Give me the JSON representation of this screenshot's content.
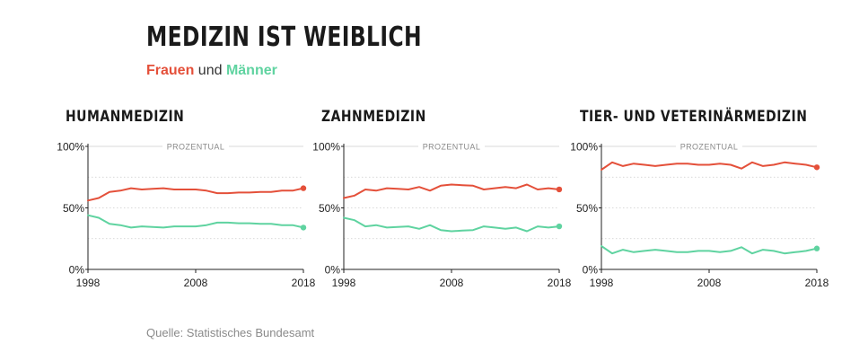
{
  "header": {
    "title": "MEDIZIN IST WEIBLICH",
    "legend_frauen": "Frauen",
    "legend_und": "und",
    "legend_maenner": "Männer"
  },
  "colors": {
    "frauen": "#e4503a",
    "maenner": "#5fd3a0",
    "grid": "#cccccc",
    "axis": "#222222"
  },
  "source": "Quelle: Statistisches Bundesamt",
  "chart_data": [
    {
      "type": "line",
      "title": "HUMANMEDIZIN",
      "axis_caption": "PROZENTUAL",
      "xlim": [
        1998,
        2018
      ],
      "ylim": [
        0,
        100
      ],
      "x_ticks": [
        "1998",
        "2008",
        "2018"
      ],
      "y_ticks": [
        "100%",
        "50%",
        "0%"
      ],
      "x": [
        1998,
        1999,
        2000,
        2001,
        2002,
        2003,
        2004,
        2005,
        2006,
        2007,
        2008,
        2009,
        2010,
        2011,
        2012,
        2013,
        2014,
        2015,
        2016,
        2017,
        2018
      ],
      "series": [
        {
          "name": "Frauen",
          "values": [
            56,
            58,
            63,
            64,
            66,
            65,
            65.5,
            66,
            65,
            65,
            65,
            64,
            62,
            62,
            62.5,
            62.5,
            63,
            63,
            64,
            64,
            66
          ]
        },
        {
          "name": "Männer",
          "values": [
            44,
            42,
            37,
            36,
            34,
            35,
            34.5,
            34,
            35,
            35,
            35,
            36,
            38,
            38,
            37.5,
            37.5,
            37,
            37,
            36,
            36,
            34
          ]
        }
      ]
    },
    {
      "type": "line",
      "title": "ZAHNMEDIZIN",
      "axis_caption": "PROZENTUAL",
      "xlim": [
        1998,
        2018
      ],
      "ylim": [
        0,
        100
      ],
      "x_ticks": [
        "1998",
        "2008",
        "2018"
      ],
      "y_ticks": [
        "100%",
        "50%",
        "0%"
      ],
      "x": [
        1998,
        1999,
        2000,
        2001,
        2002,
        2003,
        2004,
        2005,
        2006,
        2007,
        2008,
        2009,
        2010,
        2011,
        2012,
        2013,
        2014,
        2015,
        2016,
        2017,
        2018
      ],
      "series": [
        {
          "name": "Frauen",
          "values": [
            58,
            60,
            65,
            64,
            66,
            65.5,
            65,
            67,
            64,
            68,
            69,
            68.5,
            68,
            65,
            66,
            67,
            66,
            69,
            65,
            66,
            65
          ]
        },
        {
          "name": "Männer",
          "values": [
            42,
            40,
            35,
            36,
            34,
            34.5,
            35,
            33,
            36,
            32,
            31,
            31.5,
            32,
            35,
            34,
            33,
            34,
            31,
            35,
            34,
            35
          ]
        }
      ]
    },
    {
      "type": "line",
      "title": "TIER- UND VETERINÄRMEDIZIN",
      "axis_caption": "PROZENTUAL",
      "xlim": [
        1998,
        2018
      ],
      "ylim": [
        0,
        100
      ],
      "x_ticks": [
        "1998",
        "2008",
        "2018"
      ],
      "y_ticks": [
        "100%",
        "50%",
        "0%"
      ],
      "x": [
        1998,
        1999,
        2000,
        2001,
        2002,
        2003,
        2004,
        2005,
        2006,
        2007,
        2008,
        2009,
        2010,
        2011,
        2012,
        2013,
        2014,
        2015,
        2016,
        2017,
        2018
      ],
      "series": [
        {
          "name": "Frauen",
          "values": [
            81,
            87,
            84,
            86,
            85,
            84,
            85,
            86,
            86,
            85,
            85,
            86,
            85,
            82,
            87,
            84,
            85,
            87,
            86,
            85,
            83
          ]
        },
        {
          "name": "Männer",
          "values": [
            19,
            13,
            16,
            14,
            15,
            16,
            15,
            14,
            14,
            15,
            15,
            14,
            15,
            18,
            13,
            16,
            15,
            13,
            14,
            15,
            17
          ]
        }
      ]
    }
  ]
}
